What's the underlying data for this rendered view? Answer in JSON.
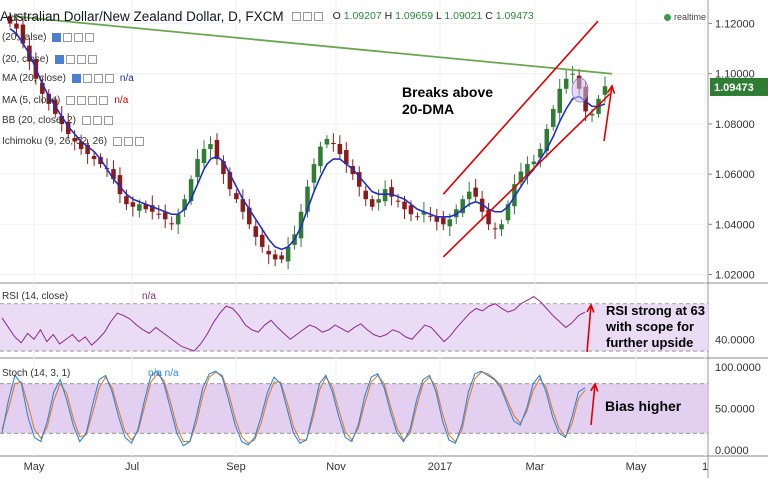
{
  "header": {
    "title": "Australian Dollar/New Zealand Dollar, D, FXCM",
    "ohlc": [
      {
        "k": "O",
        "v": "1.09207"
      },
      {
        "k": "H",
        "v": "1.09659"
      },
      {
        "k": "L",
        "v": "1.09021"
      },
      {
        "k": "C",
        "v": "1.09473"
      }
    ],
    "realtime": "realtime"
  },
  "indicators": [
    {
      "label": "(20, false)",
      "na": ""
    },
    {
      "label": "(20, close)",
      "na": ""
    },
    {
      "label": "MA (20, close)",
      "na": "n/a"
    },
    {
      "label": "MA (5, close)",
      "na": "n/a"
    },
    {
      "label": "BB (20, close, 2)",
      "na": ""
    },
    {
      "label": "Ichimoku (9, 26, 52, 26)",
      "na": ""
    }
  ],
  "annotations": {
    "breaks": [
      "Breaks above",
      "20-DMA"
    ],
    "rsi": [
      "RSI strong at 63",
      "with scope for",
      "further upside"
    ],
    "bias": "Bias higher"
  },
  "colors": {
    "candle_up": "#2e7d32",
    "candle_down": "#8b1a1a",
    "ma": "#1e2fc8",
    "trendline": "#6aa84f",
    "channel": "#e00000",
    "rsi_line": "#8b2a8b",
    "rsi_band": "#eadcf5",
    "stoch_k": "#2e86d9",
    "stoch_d": "#e07b2a",
    "stoch_band": "#dcc4ee",
    "price_label": "#2e7d32"
  },
  "chart_data": [
    {
      "type": "candlestick",
      "title": "Australian Dollar/New Zealand Dollar, D, FXCM",
      "x_ticks": [
        "May",
        "Jul",
        "Sep",
        "Nov",
        "2017",
        "Mar",
        "May",
        "1"
      ],
      "y_ticks": [
        "1.12000",
        "1.10000",
        "1.08000",
        "1.06000",
        "1.04000",
        "1.02000"
      ],
      "ylim": [
        1.017,
        1.127
      ],
      "last_price_label": "1.09473",
      "close_series_approx": [
        1.12,
        1.118,
        1.112,
        1.105,
        1.098,
        1.092,
        1.088,
        1.084,
        1.08,
        1.076,
        1.073,
        1.07,
        1.068,
        1.066,
        1.064,
        1.062,
        1.058,
        1.052,
        1.048,
        1.047,
        1.048,
        1.046,
        1.045,
        1.044,
        1.042,
        1.04,
        1.044,
        1.05,
        1.058,
        1.066,
        1.07,
        1.072,
        1.066,
        1.06,
        1.054,
        1.05,
        1.045,
        1.04,
        1.035,
        1.031,
        1.028,
        1.026,
        1.026,
        1.031,
        1.036,
        1.045,
        1.055,
        1.064,
        1.071,
        1.074,
        1.072,
        1.068,
        1.064,
        1.06,
        1.055,
        1.05,
        1.047,
        1.05,
        1.054,
        1.051,
        1.049,
        1.046,
        1.044,
        1.043,
        1.045,
        1.043,
        1.041,
        1.04,
        1.042,
        1.046,
        1.05,
        1.053,
        1.051,
        1.045,
        1.04,
        1.038,
        1.04,
        1.048,
        1.056,
        1.061,
        1.064,
        1.065,
        1.07,
        1.078,
        1.086,
        1.094,
        1.098,
        1.1,
        1.094,
        1.085,
        1.084,
        1.09,
        1.095
      ],
      "ma20_series_approx": [
        1.118,
        1.116,
        1.112,
        1.108,
        1.102,
        1.096,
        1.091,
        1.087,
        1.083,
        1.079,
        1.076,
        1.073,
        1.071,
        1.069,
        1.066,
        1.062,
        1.058,
        1.055,
        1.052,
        1.05,
        1.049,
        1.048,
        1.047,
        1.046,
        1.045,
        1.044,
        1.044,
        1.046,
        1.05,
        1.056,
        1.062,
        1.066,
        1.067,
        1.065,
        1.06,
        1.055,
        1.05,
        1.046,
        1.042,
        1.038,
        1.034,
        1.031,
        1.03,
        1.031,
        1.034,
        1.039,
        1.046,
        1.053,
        1.059,
        1.064,
        1.066,
        1.066,
        1.064,
        1.062,
        1.059,
        1.056,
        1.053,
        1.052,
        1.052,
        1.052,
        1.051,
        1.05,
        1.048,
        1.046,
        1.045,
        1.044,
        1.043,
        1.043,
        1.043,
        1.044,
        1.046,
        1.048,
        1.049,
        1.048,
        1.046,
        1.045,
        1.045,
        1.047,
        1.051,
        1.055,
        1.059,
        1.062,
        1.066,
        1.07,
        1.075,
        1.081,
        1.086,
        1.09,
        1.091,
        1.089,
        1.087,
        1.087,
        1.088
      ],
      "trendline": {
        "from": [
          0,
          1.123
        ],
        "to": [
          92,
          1.1
        ]
      },
      "channel": {
        "upper": [
          [
            67,
            1.052
          ],
          [
            92,
            1.121
          ]
        ],
        "lower": [
          [
            67,
            1.027
          ],
          [
            92,
            1.092
          ]
        ]
      }
    },
    {
      "type": "line",
      "title": "RSI (14, close)",
      "na": "n/a",
      "y_ticks": [
        "40.0000"
      ],
      "ylim": [
        25,
        85
      ],
      "overbought": 70,
      "oversold": 30,
      "values_approx": [
        58,
        50,
        42,
        37,
        45,
        40,
        48,
        38,
        44,
        36,
        40,
        44,
        38,
        42,
        35,
        40,
        46,
        55,
        62,
        60,
        57,
        52,
        48,
        45,
        50,
        46,
        42,
        38,
        34,
        32,
        30,
        36,
        44,
        54,
        62,
        68,
        66,
        60,
        52,
        48,
        46,
        52,
        56,
        50,
        45,
        40,
        44,
        48,
        52,
        50,
        46,
        48,
        52,
        49,
        46,
        50,
        53,
        48,
        44,
        42,
        44,
        48,
        46,
        42,
        40,
        46,
        52,
        50,
        44,
        38,
        43,
        50,
        56,
        62,
        66,
        64,
        68,
        70,
        66,
        63,
        65,
        70,
        73,
        76,
        72,
        66,
        60,
        55,
        50,
        54,
        60,
        63
      ]
    },
    {
      "type": "line",
      "title": "Stoch (14, 3, 1)",
      "na": "n/a n/a",
      "y_ticks": [
        "100.0000",
        "50.0000",
        "0.0000"
      ],
      "ylim": [
        -5,
        105
      ],
      "overbought": 80,
      "oversold": 20,
      "k_values_approx": [
        20,
        60,
        90,
        80,
        40,
        15,
        10,
        35,
        70,
        85,
        60,
        30,
        10,
        20,
        55,
        85,
        90,
        70,
        40,
        15,
        8,
        25,
        60,
        90,
        95,
        80,
        50,
        20,
        5,
        10,
        40,
        75,
        92,
        95,
        88,
        60,
        30,
        10,
        6,
        15,
        40,
        70,
        88,
        80,
        50,
        20,
        8,
        12,
        45,
        80,
        90,
        70,
        40,
        15,
        10,
        30,
        65,
        88,
        92,
        75,
        45,
        20,
        10,
        25,
        60,
        85,
        90,
        70,
        35,
        12,
        8,
        30,
        70,
        92,
        95,
        90,
        85,
        75,
        55,
        35,
        30,
        50,
        80,
        90,
        70,
        40,
        20,
        15,
        40,
        70,
        75
      ],
      "d_values_approx": [
        25,
        50,
        80,
        82,
        55,
        25,
        14,
        28,
        60,
        80,
        68,
        38,
        16,
        18,
        45,
        75,
        88,
        75,
        48,
        22,
        12,
        22,
        52,
        82,
        92,
        84,
        58,
        28,
        10,
        10,
        32,
        66,
        88,
        94,
        90,
        68,
        38,
        16,
        8,
        12,
        32,
        62,
        82,
        82,
        58,
        28,
        12,
        12,
        38,
        72,
        88,
        76,
        48,
        22,
        12,
        26,
        56,
        82,
        90,
        80,
        52,
        26,
        12,
        20,
        52,
        80,
        88,
        76,
        44,
        18,
        10,
        24,
        60,
        86,
        94,
        92,
        86,
        78,
        60,
        42,
        32,
        46,
        72,
        86,
        76,
        48,
        26,
        16,
        32,
        62,
        72
      ]
    }
  ]
}
